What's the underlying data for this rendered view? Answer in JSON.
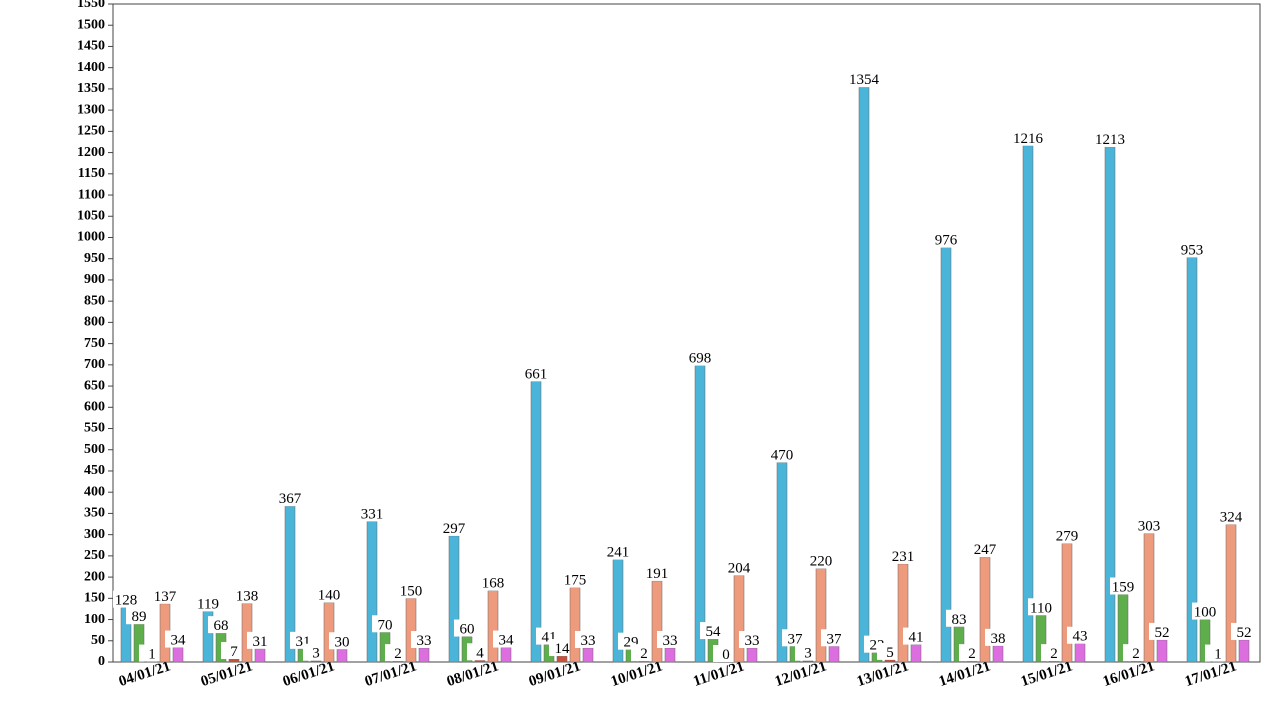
{
  "chart_data": {
    "type": "bar",
    "categories": [
      "04/01/21",
      "05/01/21",
      "06/01/21",
      "07/01/21",
      "08/01/21",
      "09/01/21",
      "10/01/21",
      "11/01/21",
      "12/01/21",
      "13/01/21",
      "14/01/21",
      "15/01/21",
      "16/01/21",
      "17/01/21"
    ],
    "series": [
      {
        "color": "#4bb4d9",
        "values": [
          128,
          119,
          367,
          331,
          297,
          661,
          241,
          698,
          470,
          1354,
          976,
          1216,
          1213,
          953
        ]
      },
      {
        "color": "#5fae4c",
        "values": [
          89,
          68,
          31,
          70,
          60,
          41,
          29,
          54,
          37,
          22,
          83,
          110,
          159,
          100
        ]
      },
      {
        "color": "#c9503a",
        "values": [
          1,
          7,
          3,
          2,
          4,
          14,
          2,
          0,
          3,
          5,
          2,
          2,
          2,
          1
        ]
      },
      {
        "color": "#ee9a7c",
        "values": [
          137,
          138,
          140,
          150,
          168,
          175,
          191,
          204,
          220,
          231,
          247,
          279,
          303,
          324
        ]
      },
      {
        "color": "#dd6ee0",
        "values": [
          34,
          31,
          30,
          33,
          34,
          33,
          33,
          33,
          37,
          41,
          38,
          43,
          52,
          52
        ]
      }
    ],
    "ylim": [
      0,
      1550
    ],
    "yticks": [
      0,
      50,
      100,
      150,
      200,
      250,
      300,
      350,
      400,
      450,
      500,
      550,
      600,
      650,
      700,
      750,
      800,
      850,
      900,
      950,
      1000,
      1050,
      1100,
      1150,
      1200,
      1250,
      1300,
      1350,
      1400,
      1450,
      1500,
      1550
    ]
  }
}
